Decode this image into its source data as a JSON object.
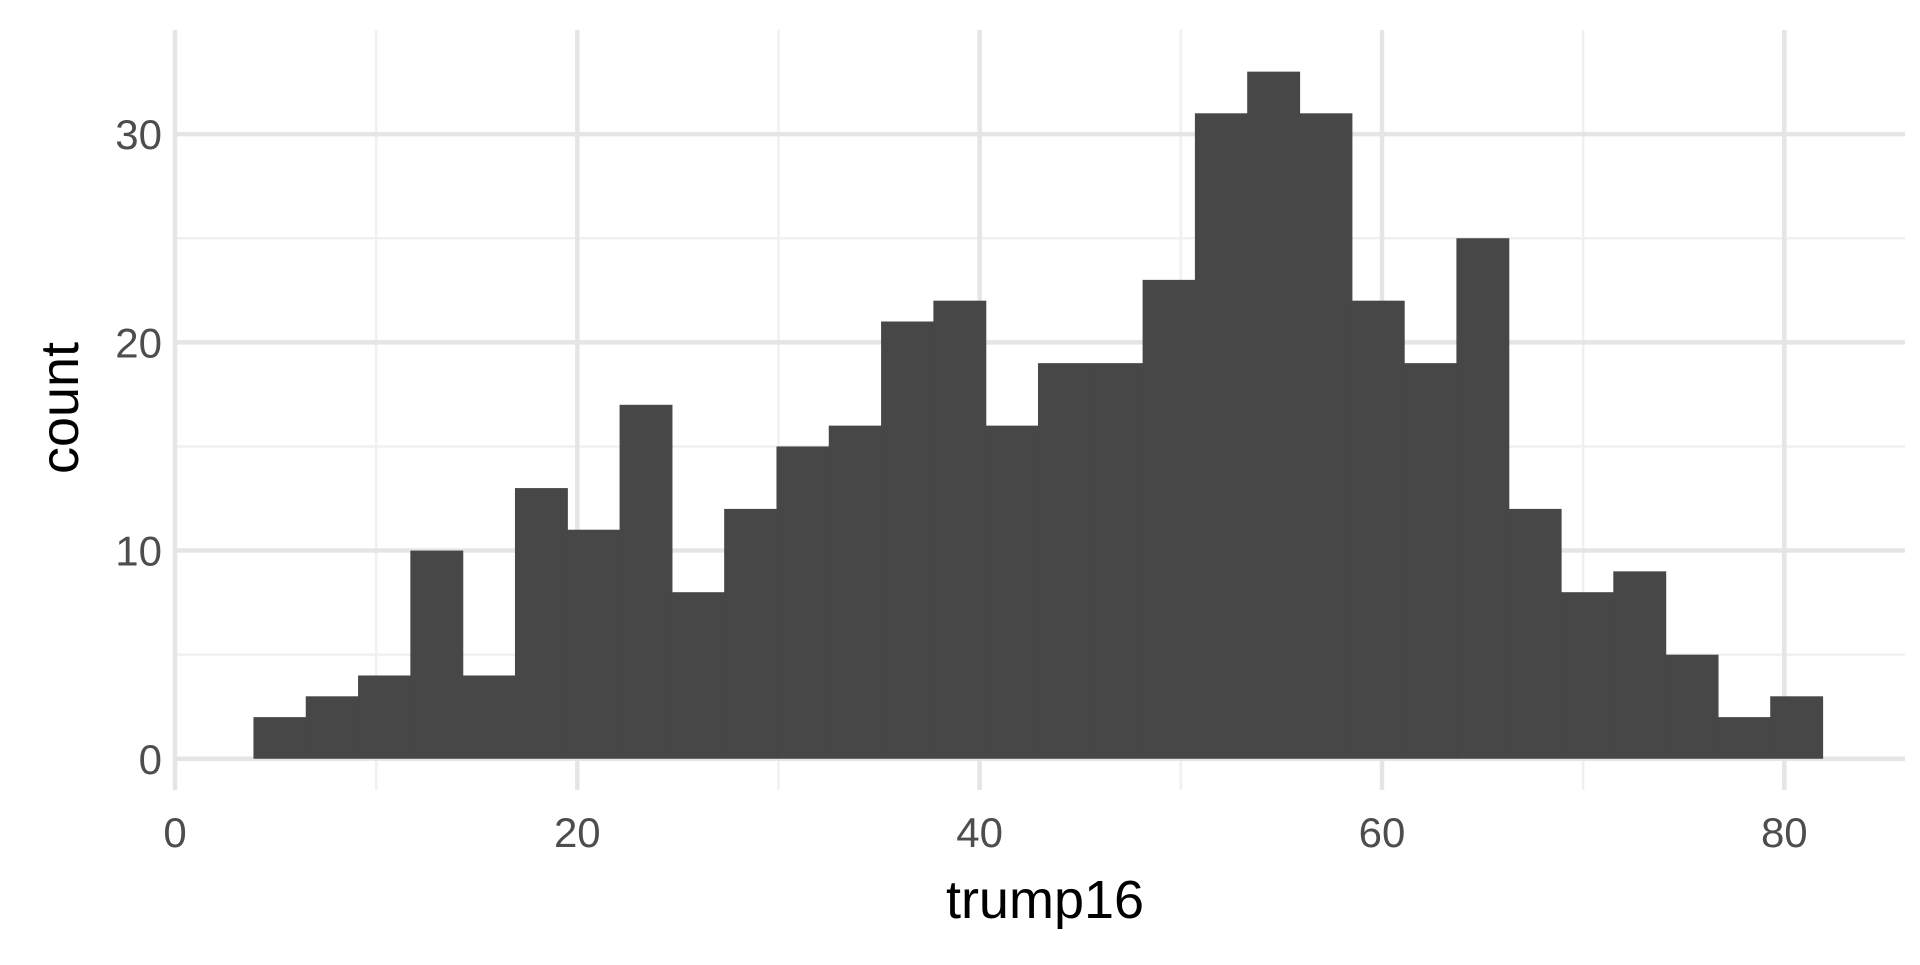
{
  "chart_data": {
    "type": "bar",
    "subtype": "histogram",
    "xlabel": "trump16",
    "ylabel": "count",
    "xlim": [
      0,
      86
    ],
    "ylim": [
      -1.5,
      35
    ],
    "xticks": [
      0,
      20,
      40,
      60,
      80
    ],
    "yticks": [
      0,
      10,
      20,
      30
    ],
    "x_minor_grid": [
      10,
      30,
      50,
      70
    ],
    "y_minor_grid": [
      5,
      15,
      25
    ],
    "bin_width": 2.6,
    "bin_start": 3.9,
    "counts": [
      2,
      3,
      4,
      10,
      4,
      13,
      11,
      17,
      8,
      12,
      15,
      16,
      21,
      22,
      16,
      19,
      19,
      23,
      31,
      33,
      31,
      22,
      19,
      25,
      12,
      8,
      9,
      5,
      2,
      3
    ],
    "grid": true,
    "legend": "none",
    "colors": {
      "bar": "#474747",
      "grid_major": "#e5e5e5",
      "grid_minor": "#f0f0f0",
      "tick_text": "#4d4d4d",
      "axis_title": "#000000",
      "background": "#ffffff"
    }
  }
}
